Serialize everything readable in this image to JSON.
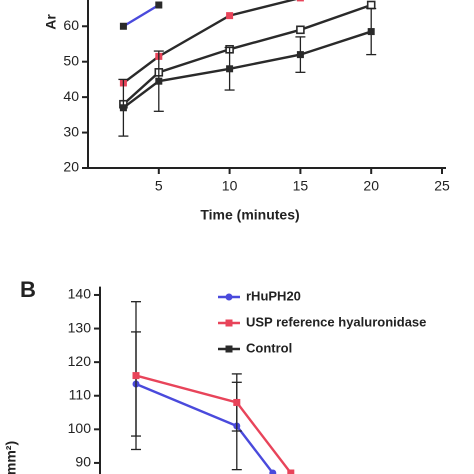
{
  "chart_data": [
    {
      "type": "line",
      "ylabel": "Ar",
      "xlabel": "Time (minutes)",
      "xlim": [
        0,
        25
      ],
      "xticks": [
        5,
        10,
        15,
        20,
        25
      ],
      "ylim": [
        20,
        66
      ],
      "yticks": [
        20,
        30,
        40,
        50,
        60
      ],
      "series": [
        {
          "color": "#4a4adc",
          "marker": "square",
          "marker_color": "#2a2a2a",
          "x": [
            2.5,
            5
          ],
          "values": [
            60,
            66
          ]
        },
        {
          "color": "#2a2a2a",
          "marker": "square",
          "marker_color": "#e8445a",
          "x": [
            2.5,
            5,
            10,
            15
          ],
          "values": [
            44,
            51.5,
            63,
            68
          ]
        },
        {
          "color": "#2a2a2a",
          "marker": "open-square",
          "marker_color": "#2a2a2a",
          "x": [
            2.5,
            5,
            10,
            15,
            20
          ],
          "values": [
            38,
            47,
            53.5,
            59,
            66
          ]
        },
        {
          "color": "#2a2a2a",
          "marker": "square",
          "marker_color": "#2a2a2a",
          "x": [
            2.5,
            5,
            10,
            15,
            20
          ],
          "values": [
            37,
            44.5,
            48,
            52,
            58.5
          ],
          "errors": [
            8,
            8.5,
            6,
            5,
            6.5
          ]
        }
      ]
    },
    {
      "type": "line",
      "panel": "B",
      "ylabel": "mm²)",
      "xlim": [
        0,
        10
      ],
      "ylim": [
        87,
        141
      ],
      "yticks": [
        90,
        100,
        110,
        120,
        130,
        140
      ],
      "series": [
        {
          "name": "rHuPH20",
          "color": "#4a4adc",
          "marker": "circle",
          "marker_color": "#4a4adc",
          "x": [
            1,
            3.8,
            4.8
          ],
          "values": [
            113.5,
            101,
            87
          ],
          "errors": [
            15.5,
            13,
            null
          ]
        },
        {
          "name": "USP reference hyaluronidase",
          "color": "#e8445a",
          "marker": "square",
          "marker_color": "#e8445a",
          "x": [
            1,
            3.8,
            5.3
          ],
          "values": [
            116,
            108,
            87
          ],
          "errors": [
            22,
            8.5,
            null
          ]
        },
        {
          "name": "Control",
          "color": "#2a2a2a",
          "marker": "square",
          "marker_color": "#2a2a2a",
          "x": [],
          "values": []
        }
      ]
    }
  ]
}
